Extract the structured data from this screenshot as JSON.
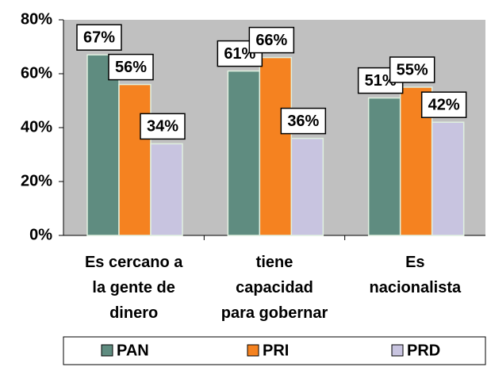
{
  "chart_data": {
    "type": "bar",
    "categories": [
      "Es cercano a\nla gente de\ndinero",
      "tiene\ncapacidad\npara gobernar",
      "Es\nnacionalista"
    ],
    "series": [
      {
        "name": "PAN",
        "color": "#5f8c80",
        "values": [
          67,
          61,
          51
        ],
        "value_labels": [
          "67%",
          "61%",
          "51%"
        ]
      },
      {
        "name": "PRI",
        "color": "#f58220",
        "values": [
          56,
          66,
          55
        ],
        "value_labels": [
          "56%",
          "66%",
          "55%"
        ]
      },
      {
        "name": "PRD",
        "color": "#c8c4e0",
        "values": [
          34,
          36,
          42
        ],
        "value_labels": [
          "34%",
          "36%",
          "42%"
        ]
      }
    ],
    "ylim": [
      0,
      80
    ],
    "yticks": [
      {
        "value": 0,
        "label": "0%"
      },
      {
        "value": 20,
        "label": "20%"
      },
      {
        "value": 40,
        "label": "40%"
      },
      {
        "value": 60,
        "label": "60%"
      },
      {
        "value": 80,
        "label": "80%"
      }
    ],
    "grid": false,
    "legend": "bottom"
  }
}
